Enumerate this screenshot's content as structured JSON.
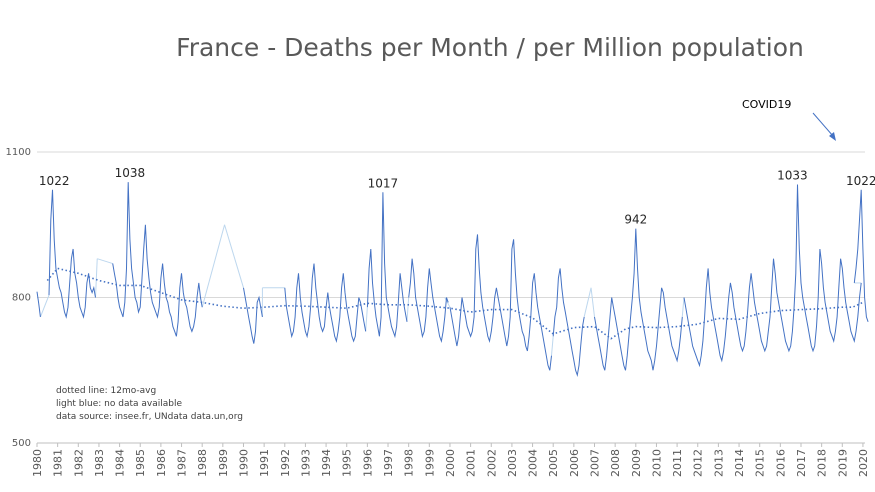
{
  "chart_data": {
    "type": "line",
    "title": "France - Deaths per Month / per Million population",
    "xlabel": "",
    "ylabel": "",
    "ylim": [
      500,
      1100
    ],
    "y_ticks": [
      500,
      800,
      1100
    ],
    "x_tick_labels": [
      "1980",
      "1981",
      "1982",
      "1983",
      "1984",
      "1985",
      "1986",
      "1987",
      "1988",
      "1989",
      "1990",
      "1991",
      "1992",
      "1993",
      "1994",
      "1995",
      "1996",
      "1997",
      "1998",
      "1999",
      "2000",
      "2001",
      "2002",
      "2003",
      "2004",
      "2005",
      "2006",
      "2007",
      "2008",
      "2009",
      "2010",
      "2011",
      "2012",
      "2013",
      "2014",
      "2015",
      "2016",
      "2017",
      "2018",
      "2019",
      "2020"
    ],
    "x_range": [
      1980.0,
      2020.1
    ],
    "grid": "horizontal",
    "series": [
      {
        "kind": "monthly",
        "color": "#4472c4",
        "segments": [
          {
            "start": 1980.0,
            "monthly_values": [
              812,
              788,
              760
            ]
          },
          {
            "start": 1980.583,
            "monthly_values": [
              805,
              960,
              1022,
              920,
              860,
              840,
              820,
              810,
              790,
              770,
              760,
              780,
              830,
              880,
              900,
              850,
              830,
              800,
              780,
              770,
              760,
              780,
              830,
              850,
              820,
              810,
              820,
              800
            ]
          },
          {
            "start": 1982.917,
            "monthly_values": [
              880
            ]
          },
          {
            "start": 1983.667,
            "monthly_values": [
              870,
              850,
              830,
              800,
              780,
              770,
              760,
              790,
              860,
              1038,
              920,
              860,
              830,
              800,
              790,
              770,
              780,
              840,
              900,
              950,
              880,
              840,
              810,
              790,
              780,
              770,
              760,
              780,
              840,
              870,
              830,
              800,
              790,
              770,
              760,
              740,
              730,
              720,
              750,
              820,
              850,
              810,
              790,
              780,
              760,
              740,
              730,
              740,
              760,
              800,
              830,
              800,
              780
            ]
          },
          {
            "start": 1989.083,
            "monthly_values": [
              950
            ]
          },
          {
            "start": 1990.0,
            "monthly_values": [
              820,
              800,
              780,
              760,
              740,
              720,
              705,
              730,
              790,
              800,
              780,
              760
            ]
          },
          {
            "start": 1990.917,
            "monthly_values": [
              820
            ]
          },
          {
            "start": 1992.0,
            "monthly_values": [
              820,
              780,
              760,
              740,
              720,
              730,
              760,
              820,
              850,
              800,
              770,
              750,
              730,
              720,
              740,
              780,
              840,
              870,
              820,
              790,
              760,
              740,
              730,
              740,
              780,
              810,
              780,
              760,
              740,
              720,
              710,
              730,
              760,
              820,
              850,
              810,
              780,
              760,
              740,
              720,
              710,
              720,
              760,
              800,
              790,
              770,
              750,
              730
            ]
          },
          {
            "start": 1996.0,
            "monthly_values": [
              780,
              860,
              900,
              830,
              790,
              760,
              740,
              720,
              760,
              1017,
              870,
              800,
              780,
              760,
              740,
              730,
              720,
              740,
              790,
              850,
              820,
              790,
              770,
              750
            ]
          },
          {
            "start": 1998.0,
            "monthly_values": [
              800,
              830,
              880,
              850,
              800,
              780,
              760,
              740,
              720,
              730,
              760,
              820,
              860,
              830,
              800,
              780,
              760,
              740,
              720,
              710,
              730,
              760,
              800,
              790
            ]
          },
          {
            "start": 1999.75,
            "monthly_values": [
              800
            ]
          },
          {
            "start": 2000.0,
            "monthly_values": [
              780,
              760,
              740,
              720,
              700,
              720,
              760,
              800,
              780,
              760,
              740,
              730,
              720,
              730,
              760,
              900,
              930,
              860,
              810,
              780,
              760,
              740,
              720,
              710,
              730,
              760,
              800,
              820,
              800,
              780,
              760,
              740,
              720,
              700,
              720,
              760,
              900,
              920,
              850,
              800,
              770,
              750,
              730,
              720,
              700,
              690,
              720,
              760,
              830,
              850,
              810,
              780,
              760,
              740,
              720,
              700,
              680,
              660,
              650,
              680
            ]
          },
          {
            "start": 2005.0,
            "monthly_values": [
              720,
              760,
              780,
              840,
              860,
              820,
              790,
              770,
              750,
              730,
              710,
              690,
              670,
              650,
              640,
              660,
              700,
              740,
              760
            ]
          },
          {
            "start": 2006.833,
            "monthly_values": [
              820
            ]
          },
          {
            "start": 2007.0,
            "monthly_values": [
              760,
              740,
              720,
              700,
              680,
              660,
              650,
              680,
              720,
              760,
              800,
              780,
              760,
              740,
              720,
              700,
              680,
              660,
              650,
              680,
              720,
              760,
              800,
              850,
              942,
              860,
              800,
              770,
              750,
              730,
              710,
              690,
              680,
              670,
              650,
              670,
              700,
              740,
              780,
              820,
              810,
              780,
              760,
              740,
              720,
              700,
              690,
              680,
              670,
              690,
              720,
              760
            ]
          },
          {
            "start": 2011.333,
            "monthly_values": [
              800,
              780,
              760,
              740,
              720,
              700,
              690,
              680,
              670,
              660,
              680,
              710,
              760,
              820,
              860,
              810,
              780,
              760,
              740,
              720,
              700,
              680,
              670,
              690,
              720,
              760,
              800,
              830,
              810,
              780,
              760,
              740,
              720,
              700,
              690,
              700,
              730,
              770,
              820,
              850,
              820,
              790,
              770,
              750,
              730,
              710,
              700,
              690,
              700,
              730,
              760,
              820,
              880,
              850,
              810,
              790,
              770,
              750,
              730,
              710,
              700,
              690,
              700,
              730,
              780,
              850,
              1033,
              900,
              830,
              800,
              780,
              760,
              740,
              720,
              700,
              690,
              700,
              740,
              800,
              900,
              870,
              820,
              790,
              770,
              750,
              730,
              720,
              710,
              730,
              760,
              820,
              880,
              860,
              820,
              790,
              770,
              750,
              730,
              720,
              710,
              730,
              760,
              800,
              830
            ]
          },
          {
            "start": 2019.583,
            "monthly_values": [
              830,
              860,
              900,
              960,
              1022,
              900,
              800,
              760,
              750
            ]
          }
        ]
      },
      {
        "name": "",
        "kind": "12mo-avg",
        "color": "#4472c4",
        "points": [
          [
            1980.5,
            835
          ],
          [
            1981,
            860
          ],
          [
            1982,
            850
          ],
          [
            1983,
            835
          ],
          [
            1984,
            825
          ],
          [
            1985,
            825
          ],
          [
            1986,
            810
          ],
          [
            1987,
            795
          ],
          [
            1988,
            790
          ],
          [
            1989,
            782
          ],
          [
            1990,
            778
          ],
          [
            1991,
            780
          ],
          [
            1992,
            783
          ],
          [
            1993,
            782
          ],
          [
            1994,
            780
          ],
          [
            1995,
            778
          ],
          [
            1996,
            788
          ],
          [
            1997,
            785
          ],
          [
            1998,
            785
          ],
          [
            1999,
            782
          ],
          [
            2000,
            778
          ],
          [
            2001,
            770
          ],
          [
            2002,
            775
          ],
          [
            2003,
            775
          ],
          [
            2004,
            758
          ],
          [
            2005,
            725
          ],
          [
            2006,
            738
          ],
          [
            2007,
            740
          ],
          [
            2007.8,
            715
          ],
          [
            2008.5,
            735
          ],
          [
            2009,
            740
          ],
          [
            2010,
            738
          ],
          [
            2011,
            740
          ],
          [
            2012,
            745
          ],
          [
            2013,
            757
          ],
          [
            2014,
            755
          ],
          [
            2015,
            767
          ],
          [
            2016,
            773
          ],
          [
            2017,
            775
          ],
          [
            2018,
            777
          ],
          [
            2019,
            780
          ],
          [
            2019.5,
            780
          ],
          [
            2020,
            790
          ]
        ]
      }
    ],
    "gap_color": "#bdd7ee",
    "annotations": [
      {
        "text": "1022",
        "x": 1980.833,
        "y": 1022
      },
      {
        "text": "1038",
        "x": 1984.5,
        "y": 1038
      },
      {
        "text": "1017",
        "x": 1996.75,
        "y": 1017
      },
      {
        "text": "942",
        "x": 2009.0,
        "y": 942
      },
      {
        "text": "1033",
        "x": 2016.583,
        "y": 1033
      },
      {
        "text": "1022",
        "x": 2019.917,
        "y": 1022
      }
    ],
    "covid_label": "COVID19",
    "notes": [
      "dotted line: 12mo-avg",
      "light blue: no  data available",
      "data source: insee.fr, UNdata data.un,org"
    ]
  }
}
